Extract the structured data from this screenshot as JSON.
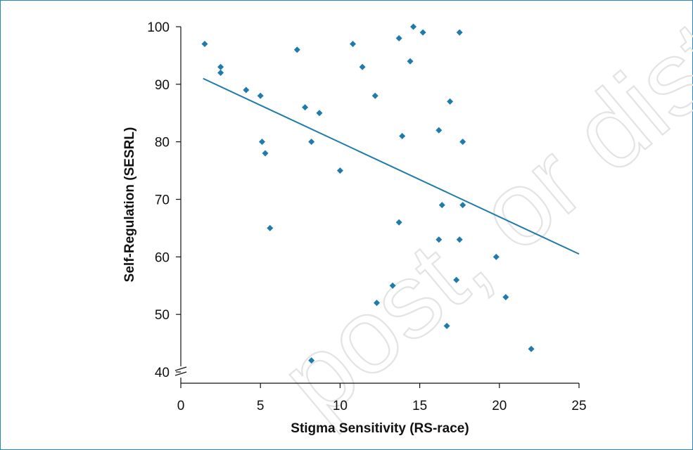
{
  "chart_data": {
    "type": "scatter",
    "title": "",
    "xlabel": "Stigma Sensitivity (RS-race)",
    "ylabel": "Self-Regulation (SESRL)",
    "xlim": [
      0,
      25
    ],
    "ylim": [
      40,
      100
    ],
    "x_ticks": [
      0,
      5,
      10,
      15,
      20,
      25
    ],
    "y_ticks": [
      40,
      50,
      60,
      70,
      80,
      90,
      100
    ],
    "y_axis_break": true,
    "grid": false,
    "legend": "none",
    "marker": "diamond",
    "marker_color": "#1e7bab",
    "line_color": "#1e7bab",
    "trendline": {
      "x": [
        1.4,
        25
      ],
      "y": [
        91,
        60.5
      ]
    },
    "points": [
      {
        "x": 1.5,
        "y": 97
      },
      {
        "x": 2.5,
        "y": 93
      },
      {
        "x": 2.5,
        "y": 92
      },
      {
        "x": 4.1,
        "y": 89
      },
      {
        "x": 5.0,
        "y": 88
      },
      {
        "x": 5.1,
        "y": 80
      },
      {
        "x": 5.3,
        "y": 78
      },
      {
        "x": 5.6,
        "y": 65
      },
      {
        "x": 7.3,
        "y": 96
      },
      {
        "x": 7.8,
        "y": 86
      },
      {
        "x": 8.2,
        "y": 80
      },
      {
        "x": 8.7,
        "y": 85
      },
      {
        "x": 8.2,
        "y": 42
      },
      {
        "x": 10.0,
        "y": 75
      },
      {
        "x": 10.8,
        "y": 97
      },
      {
        "x": 11.4,
        "y": 93
      },
      {
        "x": 12.2,
        "y": 88
      },
      {
        "x": 12.3,
        "y": 52
      },
      {
        "x": 13.3,
        "y": 55
      },
      {
        "x": 13.7,
        "y": 98
      },
      {
        "x": 13.7,
        "y": 66
      },
      {
        "x": 13.9,
        "y": 81
      },
      {
        "x": 14.4,
        "y": 94
      },
      {
        "x": 14.6,
        "y": 100
      },
      {
        "x": 15.2,
        "y": 99
      },
      {
        "x": 16.2,
        "y": 82
      },
      {
        "x": 16.2,
        "y": 63
      },
      {
        "x": 16.4,
        "y": 69
      },
      {
        "x": 16.7,
        "y": 48
      },
      {
        "x": 16.9,
        "y": 87
      },
      {
        "x": 17.3,
        "y": 56
      },
      {
        "x": 17.5,
        "y": 99
      },
      {
        "x": 17.5,
        "y": 63
      },
      {
        "x": 17.7,
        "y": 80
      },
      {
        "x": 17.7,
        "y": 69
      },
      {
        "x": 19.8,
        "y": 60
      },
      {
        "x": 20.4,
        "y": 53
      },
      {
        "x": 22.0,
        "y": 44
      }
    ]
  },
  "watermark": {
    "text": "post, or distrib",
    "color": "#e3e3e3"
  }
}
